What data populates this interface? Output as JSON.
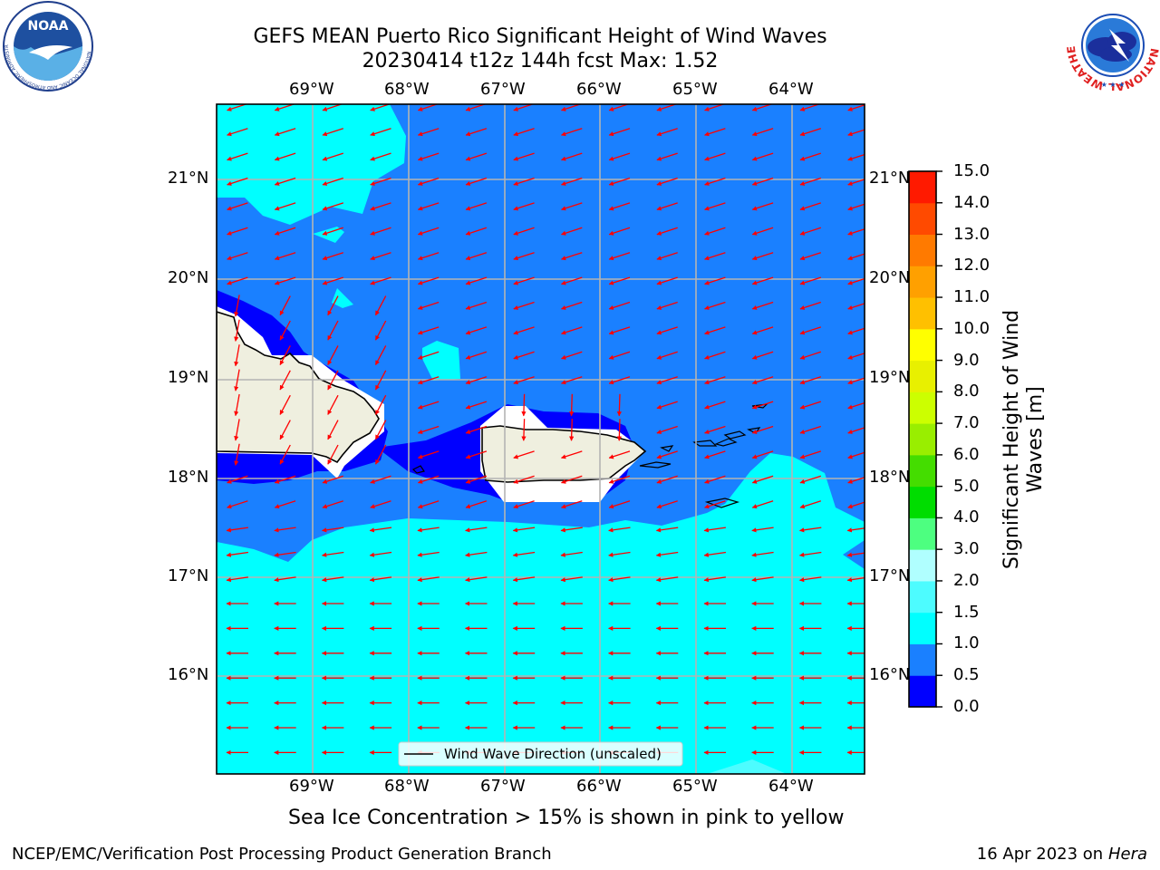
{
  "header": {
    "title_line1": "GEFS MEAN Puerto Rico Significant Height of Wind Waves",
    "title_line2": "20230414 t12z 144h fcst   Max: 1.52"
  },
  "logos": {
    "left": "noaa-logo",
    "left_text": "NOAA",
    "left_ring_text": "NATIONAL OCEANIC AND ATMOSPHERIC ADMINISTRATION · U.S. DEPARTMENT OF COMMERCE",
    "right": "national-weather-service-logo",
    "right_ring_text": "NATIONAL WEATHER SERVICE"
  },
  "map": {
    "lon_labels": [
      "69°W",
      "68°W",
      "67°W",
      "66°W",
      "65°W",
      "64°W"
    ],
    "lat_labels": [
      "21°N",
      "20°N",
      "19°N",
      "18°N",
      "17°N",
      "16°N"
    ],
    "legend_label": "Wind Wave Direction (unscaled)",
    "arrow_color": "#ff0000",
    "land_color": "#efefdf"
  },
  "colorbar": {
    "label": "Significant Height of Wind Waves [m]",
    "label_line1": "Significant Height of Wind",
    "label_line2": "Waves [m]",
    "ticks": [
      "15.0",
      "14.0",
      "13.0",
      "12.0",
      "11.0",
      "10.0",
      "9.0",
      "8.0",
      "7.0",
      "6.0",
      "5.0",
      "4.0",
      "3.0",
      "2.0",
      "1.5",
      "1.0",
      "0.5",
      "0.0"
    ],
    "levels_bottom_to_top": [
      {
        "range": "0.0-0.5",
        "color": "#0000ff"
      },
      {
        "range": "0.5-1.0",
        "color": "#1a80ff"
      },
      {
        "range": "1.0-1.5",
        "color": "#00ffff"
      },
      {
        "range": "1.5-2.0",
        "color": "#4dfcff"
      },
      {
        "range": "2.0-3.0",
        "color": "#b0ffff"
      },
      {
        "range": "3.0-4.0",
        "color": "#4dff80"
      },
      {
        "range": "4.0-5.0",
        "color": "#00dd00"
      },
      {
        "range": "5.0-6.0",
        "color": "#44dd00"
      },
      {
        "range": "6.0-7.0",
        "color": "#99ee00"
      },
      {
        "range": "7.0-8.0",
        "color": "#ccff00"
      },
      {
        "range": "8.0-9.0",
        "color": "#e8f000"
      },
      {
        "range": "9.0-10.0",
        "color": "#ffff00"
      },
      {
        "range": "10.0-11.0",
        "color": "#ffc000"
      },
      {
        "range": "11.0-12.0",
        "color": "#ffa000"
      },
      {
        "range": "12.0-13.0",
        "color": "#ff7a00"
      },
      {
        "range": "13.0-14.0",
        "color": "#ff4a00"
      },
      {
        "range": "14.0-15.0",
        "color": "#ff1a00"
      }
    ]
  },
  "notes": {
    "sea_ice": "Sea Ice Concentration > 15% is shown in pink to yellow"
  },
  "footer": {
    "left": "NCEP/EMC/Verification Post Processing Product Generation Branch",
    "right_prefix": "16 Apr 2023 on ",
    "right_host": "Hera"
  }
}
